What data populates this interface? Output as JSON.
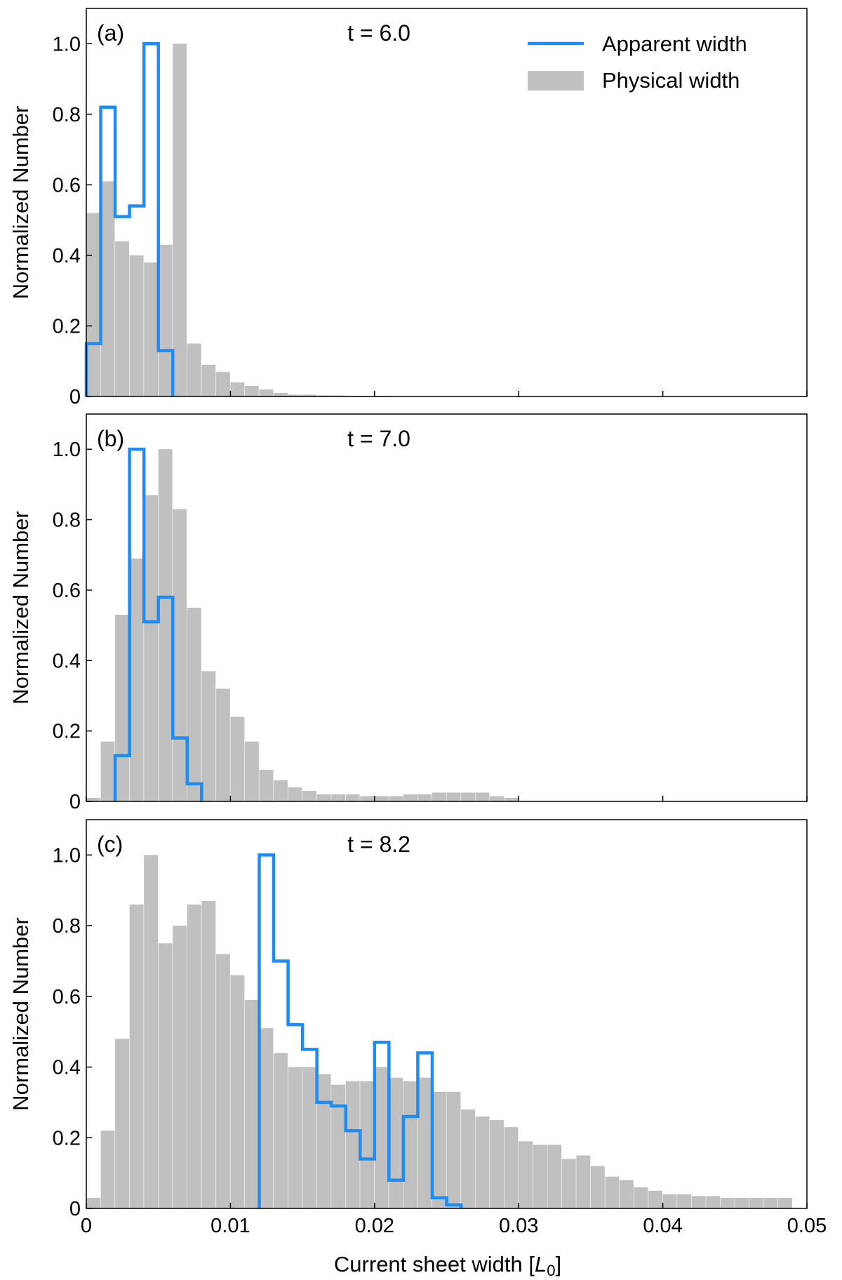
{
  "figure": {
    "ylabel": "Normalized Number",
    "xlabel_prefix": "Current sheet width [",
    "xlabel_symbol": "L",
    "xlabel_subscript": "0",
    "xlabel_suffix": "]"
  },
  "legend": {
    "apparent": "Apparent width",
    "physical": "Physical width"
  },
  "colors": {
    "apparent": "#1e8cf0",
    "physical": "#c0c0c0",
    "axis": "#000000"
  },
  "chart_data": [
    {
      "type": "bar",
      "panel_label": "(a)",
      "time_label": "t = 6.0",
      "legend_position": "top-right",
      "xlim": [
        0,
        0.05
      ],
      "ylim": [
        0,
        1.1
      ],
      "xticks": [
        0,
        0.01,
        0.02,
        0.03,
        0.04,
        0.05
      ],
      "xtick_labels": [
        "0",
        "0.01",
        "0.02",
        "0.03",
        "0.04",
        "0.05"
      ],
      "show_xtick_labels": false,
      "yticks": [
        0,
        0.2,
        0.4,
        0.6,
        0.8,
        1.0
      ],
      "ytick_labels": [
        "0",
        "0.2",
        "0.4",
        "0.6",
        "0.8",
        "1.0"
      ],
      "physical": {
        "bin_width": 0.001,
        "x_start": 0,
        "values": [
          0.52,
          0.61,
          0.44,
          0.4,
          0.38,
          0.43,
          1.0,
          0.15,
          0.09,
          0.07,
          0.04,
          0.03,
          0.02,
          0.01,
          0.005,
          0.005,
          0.003,
          0.003,
          0.002,
          0.002,
          0.002,
          0.001,
          0.001,
          0.001,
          0.001,
          0.001,
          0.001,
          0.001,
          0.001,
          0.001
        ]
      },
      "apparent": {
        "bin_width": 0.001,
        "x_start": 0,
        "values": [
          0.15,
          0.82,
          0.51,
          0.54,
          1.0,
          0.13
        ]
      }
    },
    {
      "type": "bar",
      "panel_label": "(b)",
      "time_label": "t = 7.0",
      "xlim": [
        0,
        0.05
      ],
      "ylim": [
        0,
        1.1
      ],
      "xticks": [
        0,
        0.01,
        0.02,
        0.03,
        0.04,
        0.05
      ],
      "xtick_labels": [
        "0",
        "0.01",
        "0.02",
        "0.03",
        "0.04",
        "0.05"
      ],
      "show_xtick_labels": false,
      "yticks": [
        0,
        0.2,
        0.4,
        0.6,
        0.8,
        1.0
      ],
      "ytick_labels": [
        "0",
        "0.2",
        "0.4",
        "0.6",
        "0.8",
        "1.0"
      ],
      "physical": {
        "bin_width": 0.001,
        "x_start": 0,
        "values": [
          0.01,
          0.17,
          0.53,
          0.69,
          0.87,
          1.0,
          0.83,
          0.55,
          0.37,
          0.32,
          0.24,
          0.17,
          0.09,
          0.06,
          0.04,
          0.03,
          0.02,
          0.02,
          0.02,
          0.015,
          0.015,
          0.015,
          0.02,
          0.02,
          0.025,
          0.025,
          0.025,
          0.025,
          0.015,
          0.01
        ]
      },
      "apparent": {
        "bin_width": 0.001,
        "x_start": 0.002,
        "values": [
          0.13,
          1.0,
          0.51,
          0.58,
          0.18,
          0.05
        ]
      }
    },
    {
      "type": "bar",
      "panel_label": "(c)",
      "time_label": "t = 8.2",
      "xlim": [
        0,
        0.05
      ],
      "ylim": [
        0,
        1.1
      ],
      "xticks": [
        0,
        0.01,
        0.02,
        0.03,
        0.04,
        0.05
      ],
      "xtick_labels": [
        "0",
        "0.01",
        "0.02",
        "0.03",
        "0.04",
        "0.05"
      ],
      "show_xtick_labels": true,
      "yticks": [
        0,
        0.2,
        0.4,
        0.6,
        0.8,
        1.0
      ],
      "ytick_labels": [
        "0",
        "0.2",
        "0.4",
        "0.6",
        "0.8",
        "1.0"
      ],
      "physical": {
        "bin_width": 0.001,
        "x_start": 0,
        "values": [
          0.03,
          0.22,
          0.48,
          0.86,
          1.0,
          0.75,
          0.8,
          0.86,
          0.87,
          0.72,
          0.66,
          0.59,
          0.51,
          0.44,
          0.4,
          0.4,
          0.38,
          0.35,
          0.36,
          0.36,
          0.4,
          0.37,
          0.36,
          0.37,
          0.33,
          0.33,
          0.28,
          0.26,
          0.25,
          0.23,
          0.19,
          0.18,
          0.18,
          0.14,
          0.15,
          0.12,
          0.09,
          0.08,
          0.06,
          0.05,
          0.04,
          0.04,
          0.035,
          0.035,
          0.03,
          0.03,
          0.03,
          0.03,
          0.03
        ]
      },
      "apparent": {
        "bin_width": 0.001,
        "x_start": 0.012,
        "values": [
          1.0,
          0.7,
          0.52,
          0.45,
          0.3,
          0.29,
          0.22,
          0.14,
          0.47,
          0.08,
          0.26,
          0.44,
          0.03,
          0.01
        ]
      }
    }
  ]
}
